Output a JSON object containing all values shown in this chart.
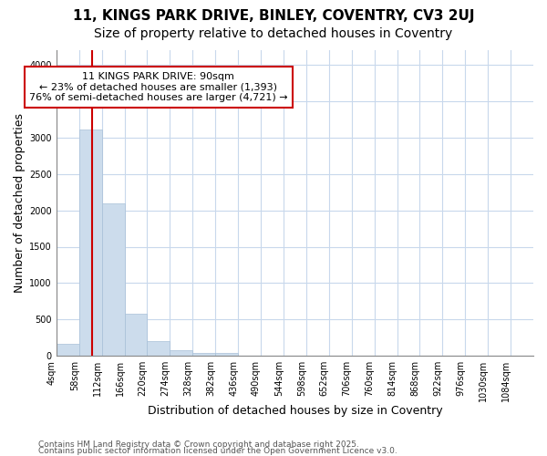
{
  "title_line1": "11, KINGS PARK DRIVE, BINLEY, COVENTRY, CV3 2UJ",
  "title_line2": "Size of property relative to detached houses in Coventry",
  "xlabel": "Distribution of detached houses by size in Coventry",
  "ylabel": "Number of detached properties",
  "bar_color": "#ccdcec",
  "bar_edgecolor": "#a8c0d8",
  "vline_color": "#cc0000",
  "vline_x": 90,
  "annotation_title": "11 KINGS PARK DRIVE: 90sqm",
  "annotation_line1": "← 23% of detached houses are smaller (1,393)",
  "annotation_line2": "76% of semi-detached houses are larger (4,721) →",
  "bin_edges": [
    4,
    58,
    112,
    166,
    220,
    274,
    328,
    382,
    436,
    490,
    544,
    598,
    652,
    706,
    760,
    814,
    868,
    922,
    976,
    1030,
    1084,
    1138
  ],
  "bin_values": [
    160,
    3110,
    2090,
    580,
    205,
    75,
    45,
    35,
    0,
    0,
    0,
    0,
    0,
    0,
    0,
    0,
    0,
    0,
    0,
    0,
    0
  ],
  "ylim": [
    0,
    4200
  ],
  "yticks": [
    0,
    500,
    1000,
    1500,
    2000,
    2500,
    3000,
    3500,
    4000
  ],
  "xtick_labels": [
    "4sqm",
    "58sqm",
    "112sqm",
    "166sqm",
    "220sqm",
    "274sqm",
    "328sqm",
    "382sqm",
    "436sqm",
    "490sqm",
    "544sqm",
    "598sqm",
    "652sqm",
    "706sqm",
    "760sqm",
    "814sqm",
    "868sqm",
    "922sqm",
    "976sqm",
    "1030sqm",
    "1084sqm"
  ],
  "background_color": "#ffffff",
  "plot_background": "#ffffff",
  "grid_color": "#c8d8ec",
  "footer_line1": "Contains HM Land Registry data © Crown copyright and database right 2025.",
  "footer_line2": "Contains public sector information licensed under the Open Government Licence v3.0.",
  "title_fontsize": 11,
  "subtitle_fontsize": 10,
  "axis_label_fontsize": 9,
  "tick_fontsize": 7,
  "annotation_fontsize": 8,
  "footer_fontsize": 6.5
}
